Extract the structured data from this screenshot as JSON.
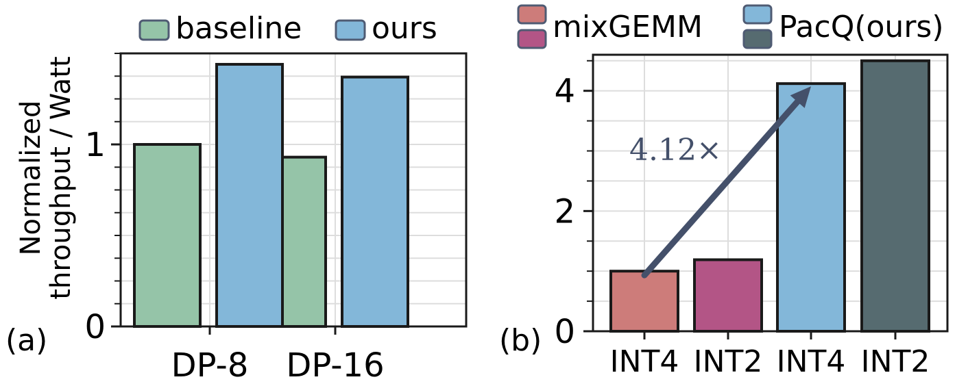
{
  "chart_data": [
    {
      "type": "bar",
      "panel_label": "(a)",
      "title": "",
      "xlabel": "",
      "ylabel_lines": [
        "Normalized",
        "throughput / Watt"
      ],
      "categories": [
        "DP-8",
        "DP-16"
      ],
      "series": [
        {
          "name": "baseline",
          "color": "#95c4a8",
          "values": [
            1.0,
            0.93
          ]
        },
        {
          "name": "ours",
          "color": "#83b7d9",
          "values": [
            1.44,
            1.37
          ]
        }
      ],
      "ylim": [
        0,
        1.5
      ],
      "yticks": [
        0,
        1
      ],
      "ytick_labels": [
        "0",
        "1"
      ],
      "minor_step": 0.125,
      "grid": true,
      "legend_position": "top"
    },
    {
      "type": "bar",
      "panel_label": "(b)",
      "title": "",
      "xlabel": "",
      "ylabel": "",
      "categories": [
        "INT4",
        "INT2",
        "INT4",
        "INT2"
      ],
      "bars": [
        {
          "label": "INT4",
          "series": "mixGEMM",
          "value": 1.0,
          "color": "#cd7c7a"
        },
        {
          "label": "INT2",
          "series": "mixGEMM",
          "value": 1.19,
          "color": "#b35586"
        },
        {
          "label": "INT4",
          "series": "PacQ(ours)",
          "value": 4.12,
          "color": "#83b7d9"
        },
        {
          "label": "INT2",
          "series": "PacQ(ours)",
          "value": 4.5,
          "color": "#566b70"
        }
      ],
      "legend": [
        {
          "name": "mixGEMM",
          "colors": [
            "#cd7c7a",
            "#b35586"
          ]
        },
        {
          "name": "PacQ(ours)",
          "colors": [
            "#83b7d9",
            "#566b70"
          ]
        }
      ],
      "ylim": [
        0,
        4.6
      ],
      "yticks": [
        0,
        2,
        4
      ],
      "ytick_labels": [
        "0",
        "2",
        "4"
      ],
      "minor_step": 0.5,
      "grid": true,
      "legend_position": "top",
      "annotation": {
        "text": "4.12×",
        "from_bar": 0,
        "to_bar": 2,
        "color": "#44506a"
      }
    }
  ]
}
